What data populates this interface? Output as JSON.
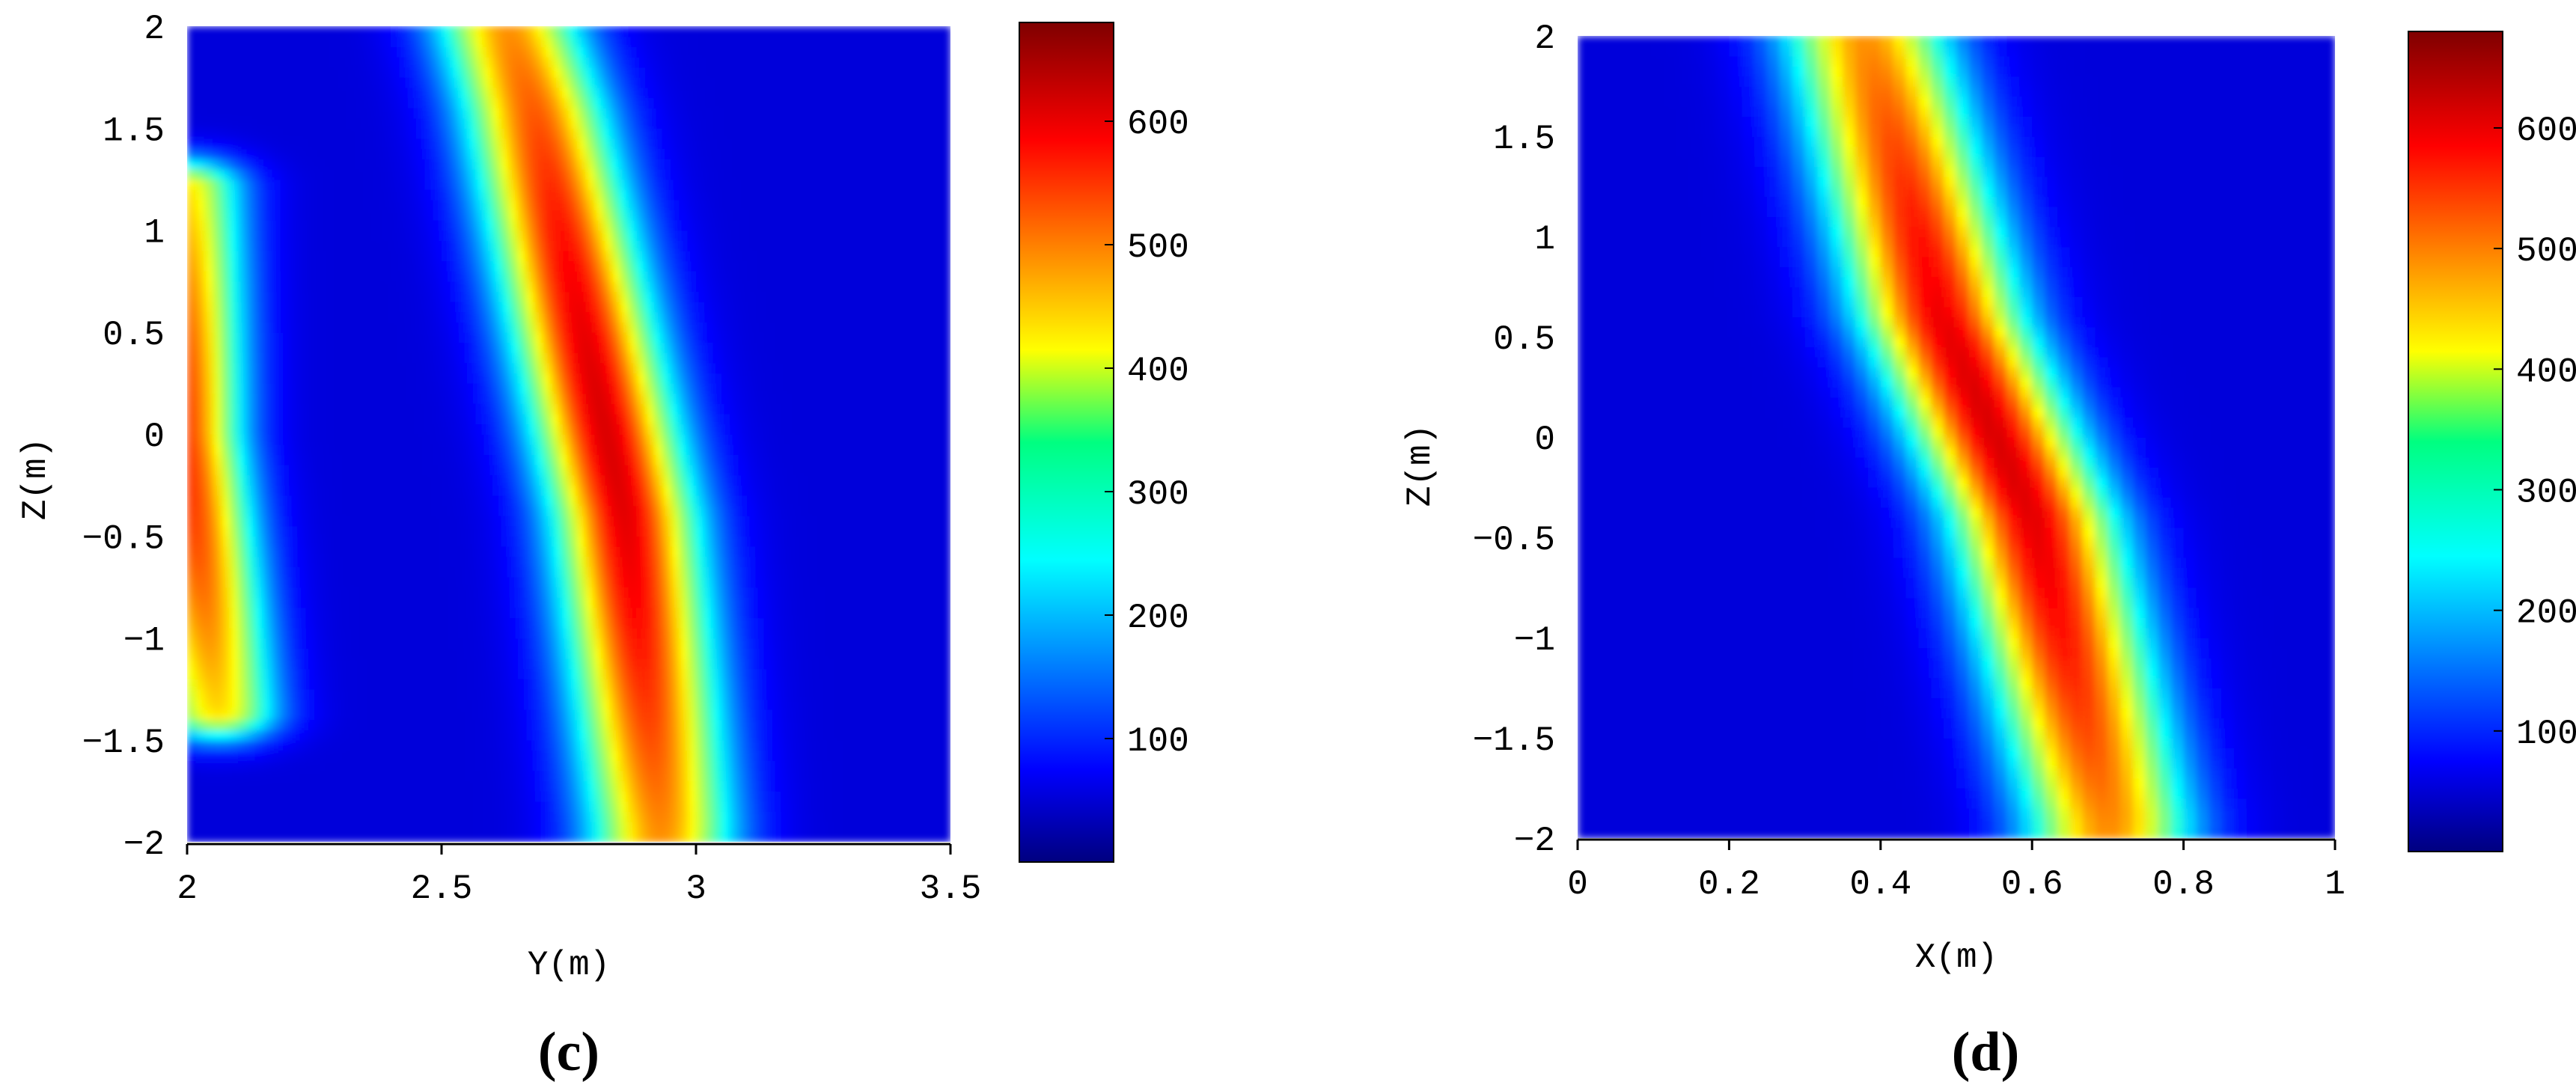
{
  "chart_data": [
    {
      "type": "heatmap",
      "panel_label": "(c)",
      "xlabel": "Y(m)",
      "ylabel": "Z(m)",
      "xlim": [
        2,
        3.5
      ],
      "ylim": [
        -2,
        2
      ],
      "x_ticks": [
        "2",
        "2.5",
        "3",
        "3.5"
      ],
      "y_ticks": [
        "2",
        "1.5",
        "1",
        "0.5",
        "0",
        "-0.5",
        "-1",
        "-1.5",
        "-2"
      ],
      "colorbar": {
        "ticks": [
          "600",
          "500",
          "400",
          "300",
          "200",
          "100"
        ],
        "range": [
          0,
          680
        ],
        "colormap": "jet"
      },
      "features": [
        {
          "description": "band",
          "peak": 560,
          "center_line": [
            [
              2.06,
              -1.35
            ],
            [
              1.99,
              0.0
            ],
            [
              1.99,
              1.1
            ]
          ],
          "width_y": 0.18,
          "z_range": [
            -1.35,
            1.2
          ]
        },
        {
          "description": "band",
          "peak": 620,
          "center_line": [
            [
              2.93,
              -1.9
            ],
            [
              2.86,
              -0.4
            ],
            [
              2.68,
              1.6
            ],
            [
              2.63,
              2.0
            ]
          ],
          "width_y": 0.22,
          "z_range": [
            -2,
            2
          ]
        }
      ]
    },
    {
      "type": "heatmap",
      "panel_label": "(d)",
      "xlabel": "X(m)",
      "ylabel": "Z(m)",
      "xlim": [
        0,
        1
      ],
      "ylim": [
        -2,
        2
      ],
      "x_ticks": [
        "0",
        "0.2",
        "0.4",
        "0.6",
        "0.8",
        "1"
      ],
      "y_ticks": [
        "2",
        "1.5",
        "1",
        "0.5",
        "0",
        "-0.5",
        "-1",
        "-1.5",
        "-2"
      ],
      "colorbar": {
        "ticks": [
          "600",
          "500",
          "400",
          "300",
          "200",
          "100"
        ],
        "range": [
          0,
          680
        ],
        "colormap": "jet"
      },
      "features": [
        {
          "description": "band",
          "peak": 620,
          "center_line": [
            [
              0.7,
              -1.9
            ],
            [
              0.6,
              -0.4
            ],
            [
              0.48,
              0.6
            ],
            [
              0.38,
              2.0
            ]
          ],
          "width_x": 0.17,
          "z_range": [
            -2,
            2
          ]
        }
      ]
    }
  ]
}
